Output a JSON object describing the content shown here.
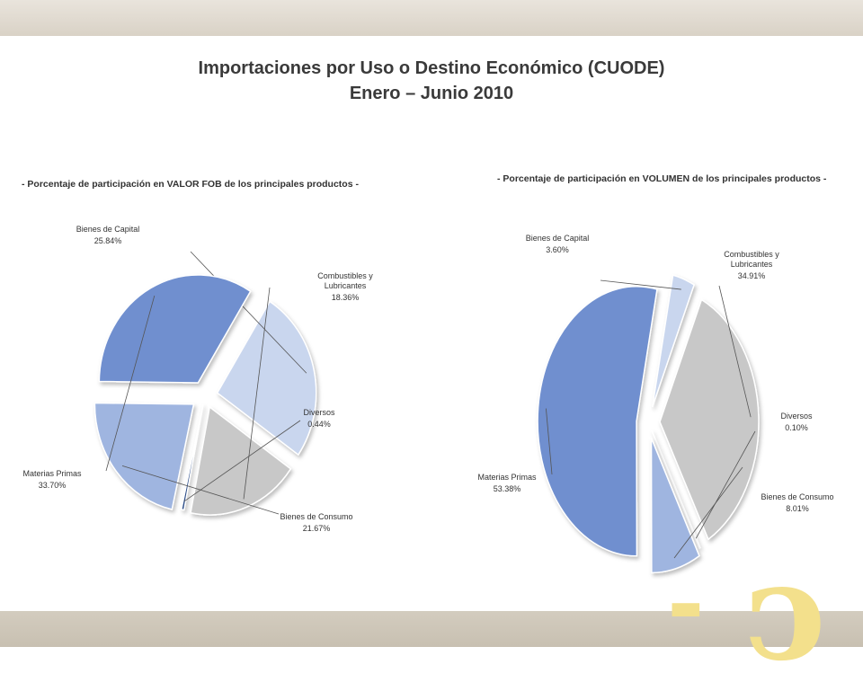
{
  "title_line1": "Importaciones por Uso o Destino Económico (CUODE)",
  "title_line2": "Enero – Junio 2010",
  "chart_data": [
    {
      "type": "pie",
      "subtitle": "- Porcentaje de participación  en VALOR FOB de los principales productos -",
      "slices": [
        {
          "name": "Bienes de Capital",
          "value": 25.84,
          "label": "25.84%",
          "color": "#c9d6ee"
        },
        {
          "name": "Combustibles y Lubricantes",
          "value": 18.36,
          "label": "18.36%",
          "color": "#c8c8c8"
        },
        {
          "name": "Diversos",
          "value": 0.44,
          "label": "0.44%",
          "color": "#2f4f8a"
        },
        {
          "name": "Bienes de Consumo",
          "value": 21.67,
          "label": "21.67%",
          "color": "#9fb5e0"
        },
        {
          "name": "Materias Primas",
          "value": 33.7,
          "label": "33.70%",
          "color": "#6f8fcf"
        }
      ]
    },
    {
      "type": "pie",
      "subtitle": "- Porcentaje de participación  en VOLUMEN de los principales productos -",
      "slices": [
        {
          "name": "Bienes de Capital",
          "value": 3.6,
          "label": "3.60%",
          "color": "#c9d6ee"
        },
        {
          "name": "Combustibles y Lubricantes",
          "value": 34.91,
          "label": "34.91%",
          "color": "#c8c8c8"
        },
        {
          "name": "Diversos",
          "value": 0.1,
          "label": "0.10%",
          "color": "#2f4f8a"
        },
        {
          "name": "Bienes de Consumo",
          "value": 8.01,
          "label": "8.01%",
          "color": "#9fb5e0"
        },
        {
          "name": "Materias Primas",
          "value": 53.38,
          "label": "53.38%",
          "color": "#6f8fcf"
        }
      ]
    }
  ]
}
